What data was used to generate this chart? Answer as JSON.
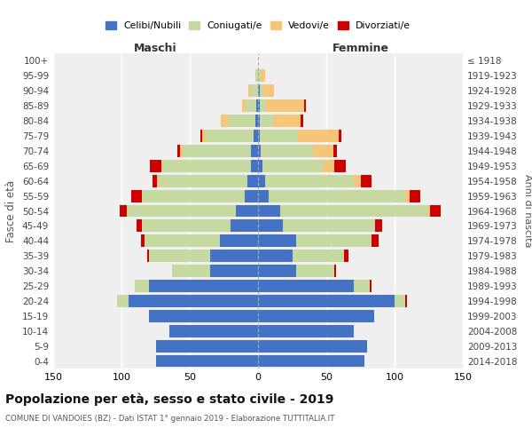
{
  "age_groups": [
    "0-4",
    "5-9",
    "10-14",
    "15-19",
    "20-24",
    "25-29",
    "30-34",
    "35-39",
    "40-44",
    "45-49",
    "50-54",
    "55-59",
    "60-64",
    "65-69",
    "70-74",
    "75-79",
    "80-84",
    "85-89",
    "90-94",
    "95-99",
    "100+"
  ],
  "birth_years": [
    "2014-2018",
    "2009-2013",
    "2004-2008",
    "1999-2003",
    "1994-1998",
    "1989-1993",
    "1984-1988",
    "1979-1983",
    "1974-1978",
    "1969-1973",
    "1964-1968",
    "1959-1963",
    "1954-1958",
    "1949-1953",
    "1944-1948",
    "1939-1943",
    "1934-1938",
    "1929-1933",
    "1924-1928",
    "1919-1923",
    "≤ 1918"
  ],
  "male": {
    "celibe": [
      75,
      75,
      65,
      80,
      95,
      80,
      35,
      35,
      28,
      20,
      16,
      10,
      8,
      5,
      5,
      3,
      2,
      1,
      0,
      0,
      0
    ],
    "coniugato": [
      0,
      0,
      0,
      0,
      8,
      10,
      28,
      45,
      55,
      65,
      80,
      75,
      65,
      65,
      50,
      35,
      20,
      8,
      5,
      2,
      0
    ],
    "vedovo": [
      0,
      0,
      0,
      0,
      0,
      0,
      0,
      0,
      0,
      0,
      0,
      0,
      1,
      1,
      2,
      3,
      5,
      3,
      2,
      0,
      0
    ],
    "divorziato": [
      0,
      0,
      0,
      0,
      0,
      0,
      0,
      1,
      3,
      4,
      5,
      8,
      3,
      8,
      2,
      1,
      0,
      0,
      0,
      0,
      0
    ]
  },
  "female": {
    "nubile": [
      78,
      80,
      70,
      85,
      100,
      70,
      28,
      25,
      28,
      18,
      16,
      8,
      5,
      3,
      2,
      1,
      1,
      1,
      1,
      0,
      0
    ],
    "coniugata": [
      0,
      0,
      0,
      0,
      8,
      12,
      28,
      38,
      55,
      68,
      108,
      100,
      65,
      45,
      38,
      28,
      10,
      5,
      3,
      2,
      0
    ],
    "vedova": [
      0,
      0,
      0,
      0,
      0,
      0,
      0,
      0,
      0,
      0,
      2,
      3,
      5,
      8,
      15,
      30,
      20,
      28,
      8,
      3,
      0
    ],
    "divorziata": [
      0,
      0,
      0,
      0,
      1,
      1,
      1,
      3,
      5,
      5,
      8,
      8,
      8,
      8,
      3,
      2,
      2,
      1,
      0,
      0,
      0
    ]
  },
  "colors": {
    "celibe": "#4472C4",
    "coniugato": "#C6D9A0",
    "vedovo": "#F5C57A",
    "divorziato": "#CC0000"
  },
  "xlim": 150,
  "title": "Popolazione per età, sesso e stato civile - 2019",
  "subtitle": "COMUNE DI VANDOIES (BZ) - Dati ISTAT 1° gennaio 2019 - Elaborazione TUTTITALIA.IT",
  "ylabel_left": "Fasce di età",
  "ylabel_right": "Anni di nascita",
  "xlabel_male": "Maschi",
  "xlabel_female": "Femmine",
  "legend_labels": [
    "Celibi/Nubili",
    "Coniugati/e",
    "Vedovi/e",
    "Divorziati/e"
  ],
  "bg_color": "#ffffff",
  "plot_bg_color": "#efefef"
}
